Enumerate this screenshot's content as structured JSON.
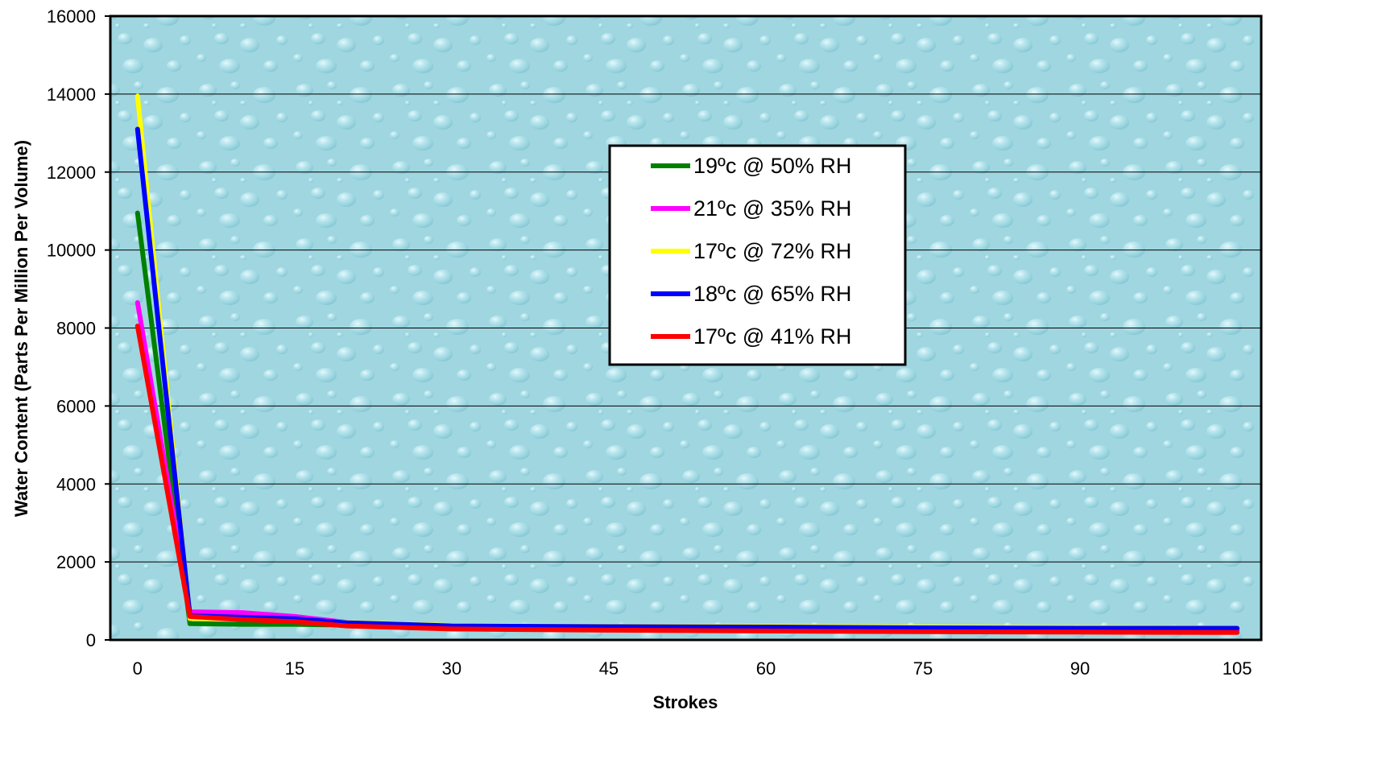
{
  "chart_data": {
    "type": "line",
    "title": "",
    "xlabel": "Strokes",
    "ylabel": "Water Content (Parts Per Million Per Volume)",
    "xlim": [
      -2.6,
      107.3
    ],
    "ylim": [
      0,
      16000
    ],
    "x_ticks": [
      0,
      15,
      30,
      45,
      60,
      75,
      90,
      105
    ],
    "y_ticks": [
      0,
      2000,
      4000,
      6000,
      8000,
      10000,
      12000,
      14000,
      16000
    ],
    "grid": "horizontal",
    "background": "light-blue-water-drops",
    "legend_position": "center-right",
    "series": [
      {
        "name": "19ºc @ 50% RH",
        "color": "#008000",
        "x": [
          0,
          5,
          10,
          15,
          20,
          30,
          45,
          60,
          75,
          90,
          105
        ],
        "y": [
          10950,
          420,
          400,
          400,
          380,
          330,
          300,
          290,
          280,
          270,
          260
        ]
      },
      {
        "name": "21ºc @ 35% RH",
        "color": "#ff00ff",
        "x": [
          0,
          5,
          10,
          15,
          20,
          30,
          45,
          60,
          75,
          90,
          105
        ],
        "y": [
          8650,
          720,
          700,
          600,
          450,
          340,
          300,
          280,
          260,
          250,
          240
        ]
      },
      {
        "name": "17ºc @ 72% RH",
        "color": "#ffff00",
        "x": [
          0,
          5,
          10,
          15,
          20,
          30,
          45,
          60,
          75,
          90,
          105
        ],
        "y": [
          13950,
          550,
          540,
          520,
          450,
          370,
          360,
          350,
          330,
          320,
          310
        ]
      },
      {
        "name": "18ºc @ 65% RH",
        "color": "#0000ff",
        "x": [
          0,
          5,
          10,
          15,
          20,
          30,
          45,
          60,
          75,
          90,
          105
        ],
        "y": [
          13100,
          620,
          580,
          540,
          440,
          360,
          340,
          330,
          310,
          300,
          300
        ]
      },
      {
        "name": "17ºc @ 41% RH",
        "color": "#ff0000",
        "x": [
          0,
          5,
          10,
          15,
          20,
          30,
          45,
          60,
          75,
          90,
          105
        ],
        "y": [
          8050,
          600,
          520,
          470,
          360,
          280,
          250,
          230,
          210,
          200,
          190
        ]
      }
    ]
  }
}
